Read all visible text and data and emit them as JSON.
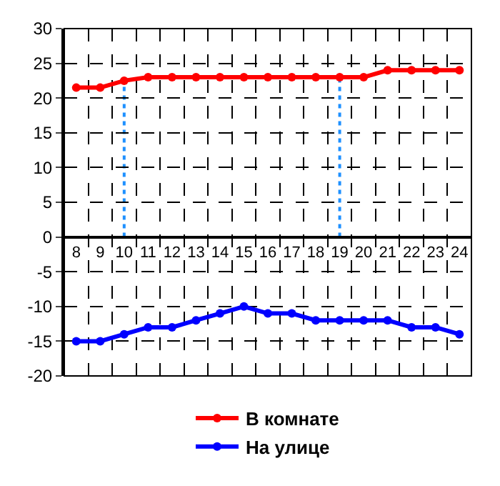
{
  "chart_data": {
    "type": "line",
    "categories": [
      "8",
      "9",
      "10",
      "11",
      "12",
      "13",
      "14",
      "15",
      "16",
      "17",
      "18",
      "19",
      "20",
      "21",
      "22",
      "23",
      "24"
    ],
    "series": [
      {
        "name": "В комнате",
        "color": "#ff0000",
        "values": [
          21.5,
          21.5,
          22.5,
          23,
          23,
          23,
          23,
          23,
          23,
          23,
          23,
          23,
          23,
          24,
          24,
          24,
          24
        ]
      },
      {
        "name": "На улице",
        "color": "#0000ff",
        "values": [
          -15,
          -15,
          -14,
          -13,
          -13,
          -12,
          -11,
          -10,
          -11,
          -11,
          -12,
          -12,
          -12,
          -12,
          -13,
          -13,
          -14
        ]
      }
    ],
    "ylim": [
      -20,
      30
    ],
    "yticks": [
      -20,
      -15,
      -10,
      -5,
      0,
      5,
      10,
      15,
      20,
      25,
      30
    ],
    "ref_lines": [
      {
        "axis": "x",
        "value": "10",
        "color": "#1e90ff",
        "line_style": "dotted"
      },
      {
        "axis": "x",
        "value": "19",
        "color": "#1e90ff",
        "line_style": "dotted"
      }
    ],
    "grid": true,
    "legend": "bottom",
    "marker": "circle",
    "line_style": "solid"
  }
}
